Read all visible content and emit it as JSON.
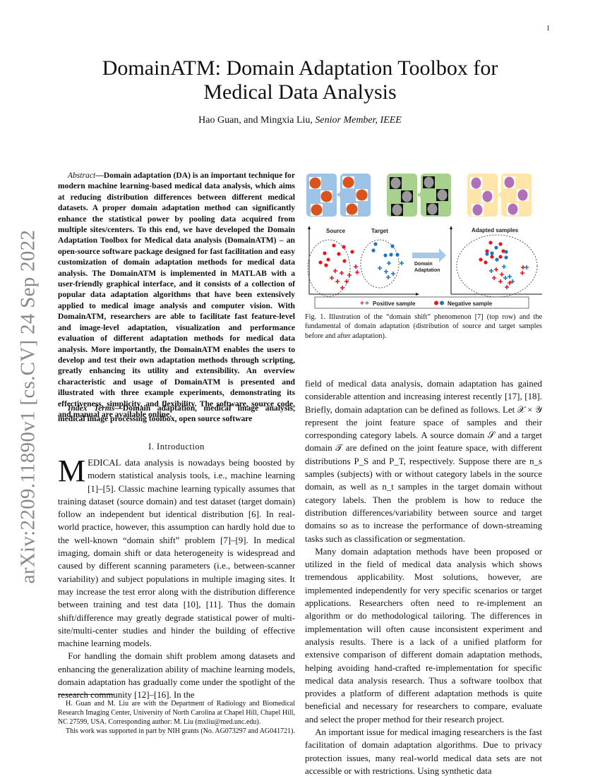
{
  "page_number": "1",
  "title": "DomainATM: Domain Adaptation Toolbox for Medical Data Analysis",
  "authors": "Hao Guan, and Mingxia Liu,",
  "author_suffix": "Senior Member, IEEE",
  "watermark": "arXiv:2209.11890v1  [cs.CV]  24 Sep 2022",
  "abstract": {
    "label": "Abstract",
    "text": "—Domain adaptation (DA) is an important technique for modern machine learning-based medical data analysis, which aims at reducing distribution differences between different medical datasets. A proper domain adaptation method can significantly enhance the statistical power by pooling data acquired from multiple sites/centers. To this end, we have developed the Domain Adaptation Toolbox for Medical data analysis (DomainATM) – an open-source software package designed for fast facilitation and easy customization of domain adaptation methods for medical data analysis. The DomainATM is implemented in MATLAB with a user-friendly graphical interface, and it consists of a collection of popular data adaptation algorithms that have been extensively applied to medical image analysis and computer vision. With DomainATM, researchers are able to facilitate fast feature-level and image-level adaptation, visualization and performance evaluation of different adaptation methods for medical data analysis. More importantly, the DomainATM enables the users to develop and test their own adaptation methods through scripting, greatly enhancing its utility and extensibility. An overview characteristic and usage of DomainATM is presented and illustrated with three example experiments, demonstrating its effectiveness, simplicity, and flexibility. The software, source code, and manual are available online."
  },
  "index_terms": {
    "label": "Index Terms",
    "text": "—Domain adaptation, medical image analysis, medical image processing toolbox, open source software"
  },
  "section_heading": "I. Introduction",
  "left_body": {
    "dropcap": "M",
    "p1": "EDICAL data analysis is nowadays being boosted by modern statistical analysis tools, i.e., machine learning [1]–[5]. Classic machine learning typically assumes that training dataset (source domain) and test dataset (target domain) follow an independent but identical distribution [6]. In real-world practice, however, this assumption can hardly hold due to the well-known “domain shift” problem [7]–[9]. In medical imaging, domain shift or data heterogeneity is widespread and caused by different scanning parameters (i.e., between-scanner variability) and subject populations in multiple imaging sites. It may increase the test error along with the distribution difference between training and test data [10], [11]. Thus the domain shift/difference may greatly degrade statistical power of multi-site/multi-center studies and hinder the building of effective machine learning models.",
    "p2": "For handling the domain shift problem among datasets and enhancing the generalization ability of machine learning models, domain adaptation has gradually come under the spotlight of the research community [12]–[16]. In the"
  },
  "footnote": {
    "p1": "H. Guan and M. Liu are with the Department of Radiology and Biomedical Research Imaging Center, University of North Carolina at Chapel Hill, Chapel Hill, NC 27599, USA. Corresponding author: M. Liu (mxliu@med.unc.edu).",
    "p2": "This work was supported in part by NIH grants (No. AG073297 and AG041721)."
  },
  "figure": {
    "source_label": "Source",
    "target_label": "Target",
    "adapted_label": "Adapted samples",
    "arrow_label_1": "Domain",
    "arrow_label_2": "Adaptation",
    "legend_positive": "Positive sample",
    "legend_negative": "Negative sample",
    "colors": {
      "source": "#e8141b",
      "target": "#1f73c2",
      "retina_bg": "#9dc3e6",
      "mri_bg": "#a9d18e",
      "histo_bg": "#ffe6a8"
    },
    "caption": "Fig. 1.  Illustration of the “domain shift” phenomenon [7] (top row) and the fundamental of domain adaptation (distribution of source and target samples before and after adaptation)."
  },
  "right_body": {
    "p1": "field of medical data analysis, domain adaptation has gained considerable attention and increasing interest recently [17], [18]. Briefly, domain adaptation can be defined as follows. Let 𝒳 × 𝒴 represent the joint feature space of samples and their corresponding category labels. A source domain 𝒮 and a target domain 𝒯 are defined on the joint feature space, with different distributions P_S and P_T, respectively. Suppose there are n_s samples (subjects) with or without category labels in the source domain, as well as n_t samples in the target domain without category labels. Then the problem is how to reduce the distribution differences/variability between source and target domains so as to increase the performance of down-streaming tasks such as classification or segmentation.",
    "p2": "Many domain adaptation methods have been proposed or utilized in the field of medical data analysis which shows tremendous applicability. Most solutions, however, are implemented independently for very specific scenarios or target applications. Researchers often need to re-implement an algorithm or do methodological tailoring. The differences in implementation will often cause inconsistent experiment and analysis results. There is a lack of a unified platform for extensive comparison of different domain adaptation methods, helping avoiding hand-crafted re-implementation for specific medical data analysis research. Thus a software toolbox that provides a platform of different adaptation methods is quite beneficial and necessary for researchers to compare, evaluate and select the proper method for their research project.",
    "p3": "An important issue for medical imaging researchers is the fast facilitation of domain adaptation algorithms. Due to privacy protection issues, many real-world medical data sets are not accessible or with restrictions. Using synthetic data"
  }
}
